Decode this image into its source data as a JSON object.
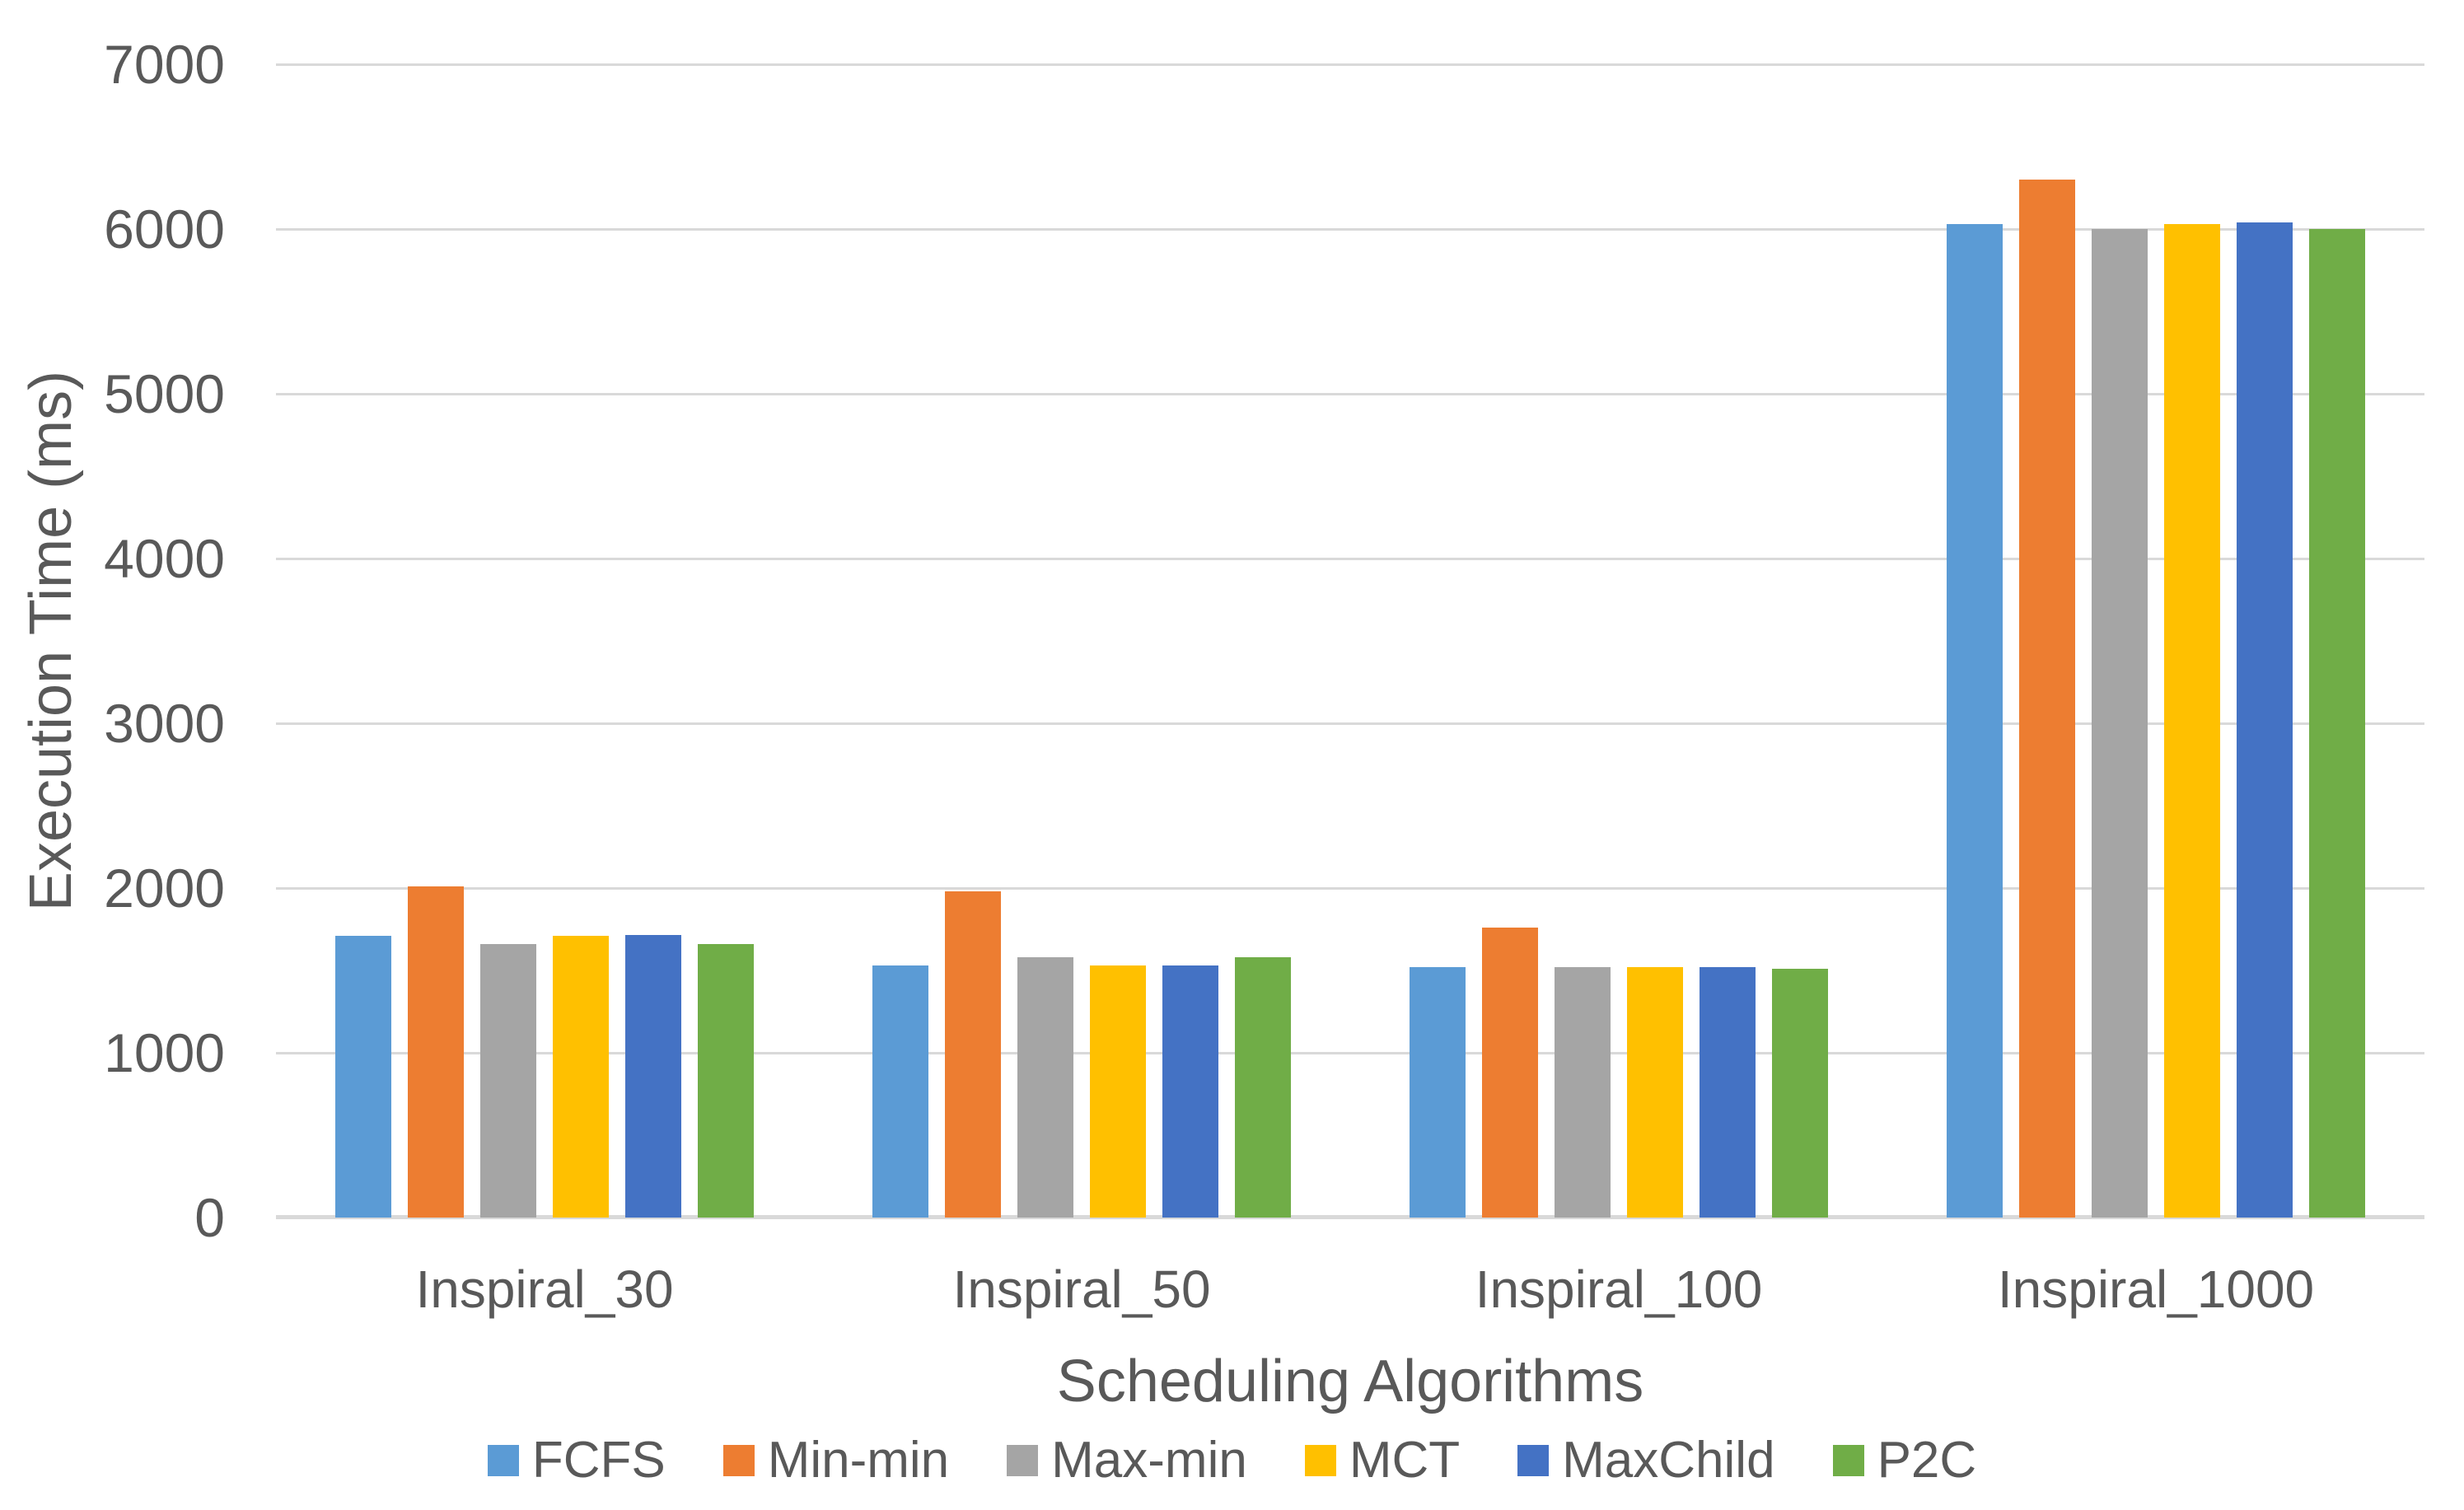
{
  "chart_data": {
    "type": "bar",
    "title": "",
    "xlabel": "Scheduling Algorithms",
    "ylabel": "Execution Time (ms)",
    "ylim": [
      0,
      7000
    ],
    "yticks": [
      0,
      1000,
      2000,
      3000,
      4000,
      5000,
      6000,
      7000
    ],
    "grid": true,
    "legend_position": "bottom",
    "categories": [
      "Inspiral_30",
      "Inspiral_50",
      "Inspiral_100",
      "Inspiral_1000"
    ],
    "series": [
      {
        "name": "FCFS",
        "color": "#5B9BD5",
        "values": [
          1710,
          1530,
          1520,
          6030
        ]
      },
      {
        "name": "Min-min",
        "color": "#ED7D31",
        "values": [
          2010,
          1980,
          1760,
          6300
        ]
      },
      {
        "name": "Max-min",
        "color": "#A5A5A5",
        "values": [
          1660,
          1580,
          1520,
          6000
        ]
      },
      {
        "name": "MCT",
        "color": "#FFC000",
        "values": [
          1710,
          1530,
          1520,
          6030
        ]
      },
      {
        "name": "MaxChild",
        "color": "#4472C4",
        "values": [
          1715,
          1530,
          1520,
          6040
        ]
      },
      {
        "name": "P2C",
        "color": "#70AD47",
        "values": [
          1660,
          1580,
          1510,
          6000
        ]
      }
    ],
    "colors": {
      "gridline": "#D9D9D9",
      "text": "#595959"
    }
  }
}
